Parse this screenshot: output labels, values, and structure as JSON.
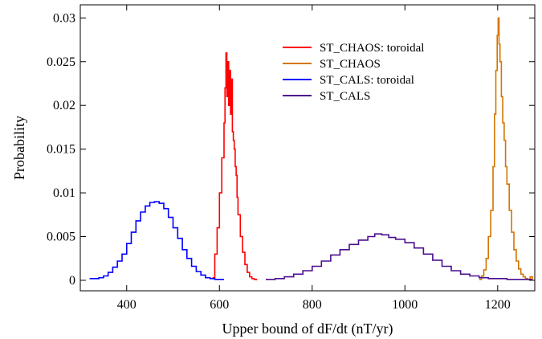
{
  "chart_data": {
    "type": "line",
    "xlabel": "Upper bound of dF/dt (nT/yr)",
    "ylabel": "Probability",
    "xlim": [
      300,
      1280
    ],
    "ylim": [
      -0.0012,
      0.0315
    ],
    "xticks": [
      400,
      600,
      800,
      1000,
      1200
    ],
    "yticks": [
      0,
      0.005,
      0.01,
      0.015,
      0.02,
      0.025,
      0.03
    ],
    "ytick_labels": [
      "0",
      "0.005",
      "0.01",
      "0.015",
      "0.02",
      "0.025",
      "0.03"
    ],
    "grid": false,
    "legend_position": "top-right",
    "series": [
      {
        "name": "ST_CHAOS: toroidal",
        "color": "#ff0000",
        "x": [
          585,
          590,
          595,
          600,
          605,
          610,
          612,
          614,
          616,
          618,
          620,
          622,
          624,
          626,
          628,
          630,
          632,
          634,
          636,
          638,
          640,
          645,
          650,
          655,
          660,
          665,
          670,
          675,
          680
        ],
        "y": [
          0.0003,
          0.003,
          0.006,
          0.01,
          0.014,
          0.018,
          0.022,
          0.026,
          0.021,
          0.025,
          0.02,
          0.024,
          0.019,
          0.023,
          0.017,
          0.016,
          0.015,
          0.013,
          0.012,
          0.0095,
          0.0075,
          0.005,
          0.0032,
          0.0018,
          0.0009,
          0.0004,
          0.0002,
          0.0001,
          0.0
        ]
      },
      {
        "name": "ST_CHAOS",
        "color": "#d47500",
        "x": [
          1160,
          1165,
          1170,
          1175,
          1180,
          1185,
          1190,
          1193,
          1196,
          1199,
          1201,
          1203,
          1205,
          1208,
          1211,
          1214,
          1217,
          1220,
          1225,
          1230,
          1235,
          1240,
          1245,
          1250,
          1255,
          1260,
          1265,
          1270,
          1275
        ],
        "y": [
          0.0001,
          0.0005,
          0.0012,
          0.0025,
          0.005,
          0.008,
          0.013,
          0.019,
          0.024,
          0.028,
          0.03,
          0.027,
          0.025,
          0.021,
          0.018,
          0.016,
          0.013,
          0.011,
          0.008,
          0.0055,
          0.0035,
          0.0022,
          0.0013,
          0.0007,
          0.0004,
          0.0002,
          0.0001,
          0.0004,
          0.0001
        ]
      },
      {
        "name": "ST_CALS: toroidal",
        "color": "#0000ff",
        "x": [
          320,
          330,
          340,
          350,
          360,
          370,
          380,
          390,
          400,
          410,
          420,
          430,
          440,
          450,
          460,
          470,
          480,
          490,
          500,
          510,
          520,
          530,
          540,
          550,
          560,
          570,
          580,
          590,
          600,
          610
        ],
        "y": [
          0.0002,
          0.0002,
          0.0003,
          0.0005,
          0.0009,
          0.0015,
          0.0022,
          0.003,
          0.0042,
          0.0055,
          0.0068,
          0.0078,
          0.0085,
          0.0089,
          0.009,
          0.0088,
          0.0082,
          0.0072,
          0.006,
          0.0048,
          0.0035,
          0.0025,
          0.0016,
          0.001,
          0.0006,
          0.0003,
          0.0002,
          0.0001,
          0.0001,
          0.0001
        ]
      },
      {
        "name": "ST_CALS",
        "color": "#4b0e8f",
        "x": [
          700,
          720,
          740,
          760,
          780,
          800,
          820,
          840,
          860,
          880,
          900,
          920,
          935,
          950,
          965,
          980,
          1000,
          1020,
          1040,
          1060,
          1080,
          1100,
          1120,
          1140,
          1160,
          1180,
          1200,
          1220,
          1240,
          1260,
          1275
        ],
        "y": [
          0.0001,
          0.0002,
          0.0004,
          0.0007,
          0.0011,
          0.0016,
          0.0022,
          0.0029,
          0.0035,
          0.0041,
          0.0046,
          0.005,
          0.0053,
          0.0052,
          0.0049,
          0.0047,
          0.0043,
          0.0037,
          0.003,
          0.0023,
          0.0016,
          0.0011,
          0.0007,
          0.0005,
          0.0003,
          0.0002,
          0.0002,
          0.0001,
          0.0001,
          0.0001,
          0.0001
        ]
      }
    ]
  }
}
